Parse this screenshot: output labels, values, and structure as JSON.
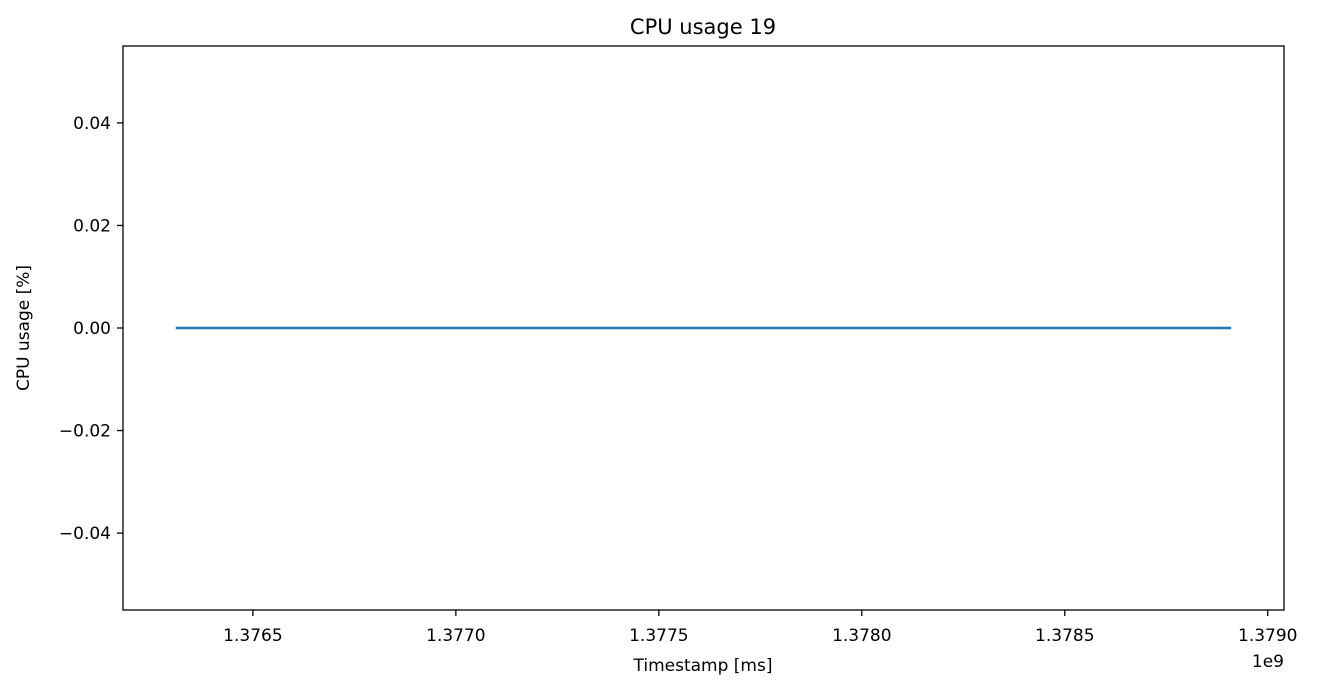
{
  "chart_data": {
    "type": "line",
    "title": "CPU usage 19",
    "xlabel": "Timestamp [ms]",
    "ylabel": "CPU usage [%]",
    "x_offset_label": "1e9",
    "xlim": [
      1376180000,
      1379040000
    ],
    "ylim": [
      -0.055,
      0.055
    ],
    "x_ticks": [
      {
        "value": 1376500000,
        "label": "1.3765"
      },
      {
        "value": 1377000000,
        "label": "1.3770"
      },
      {
        "value": 1377500000,
        "label": "1.3775"
      },
      {
        "value": 1378000000,
        "label": "1.3780"
      },
      {
        "value": 1378500000,
        "label": "1.3785"
      },
      {
        "value": 1379000000,
        "label": "1.3790"
      }
    ],
    "y_ticks": [
      {
        "value": 0.04,
        "label": "0.04"
      },
      {
        "value": 0.02,
        "label": "0.02"
      },
      {
        "value": 0.0,
        "label": "0.00"
      },
      {
        "value": -0.02,
        "label": "−0.02"
      },
      {
        "value": -0.04,
        "label": "−0.04"
      }
    ],
    "grid": false,
    "series": [
      {
        "color": "#1f77b4",
        "x": [
          1376310000,
          1378910000
        ],
        "y": [
          0,
          0
        ]
      }
    ]
  }
}
